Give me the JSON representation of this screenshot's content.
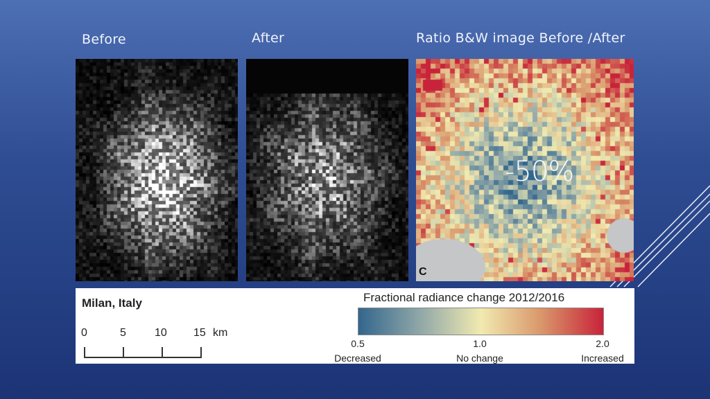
{
  "headings": {
    "before": "Before",
    "after": "After",
    "ratio": "Ratio B&W image Before /After"
  },
  "ratio_panel": {
    "percent_change": "-50%",
    "panel_letter": "C"
  },
  "legend": {
    "place": "Milan, Italy",
    "scale": {
      "labels": [
        "0",
        "5",
        "10",
        "15"
      ],
      "unit": "km"
    },
    "colorbar": {
      "title": "Fractional radiance change 2012/2016",
      "ticks": [
        "0.5",
        "1.0",
        "2.0"
      ],
      "descriptions": [
        "Decreased",
        "No change",
        "Increased"
      ],
      "colors": [
        "#33668c",
        "#8fa7a8",
        "#f1eab0",
        "#d9956a",
        "#c8233a"
      ]
    }
  },
  "colors": {
    "background_top": "#4d6fb4",
    "background_bottom": "#1c3476",
    "heading_text": "#f1f4fa"
  }
}
